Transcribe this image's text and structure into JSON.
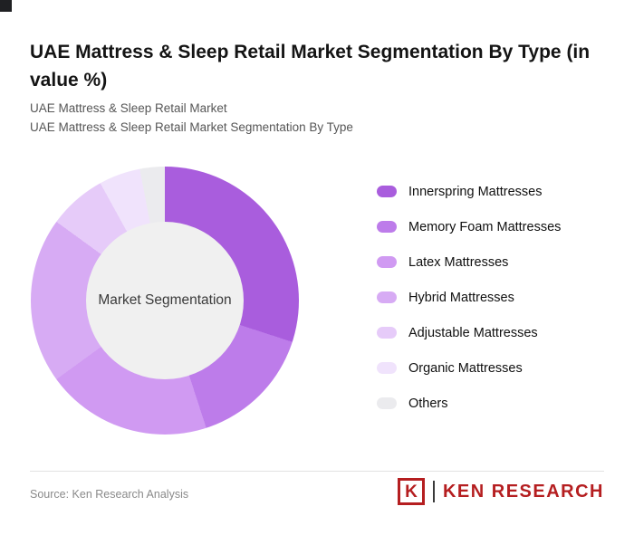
{
  "page": {
    "title": "UAE Mattress & Sleep Retail Market Segmentation By Type (in value %)",
    "subtitle_line1": "UAE Mattress & Sleep Retail Market",
    "subtitle_line2": "UAE Mattress & Sleep Retail Market Segmentation By Type"
  },
  "chart_data": {
    "type": "pie",
    "donut": true,
    "title": "UAE Mattress & Sleep Retail Market Segmentation By Type (in value %)",
    "center_label": "Market Segmentation",
    "center_color": "#f0f0f0",
    "legend_position": "right",
    "start_angle_deg": 0,
    "labels": [
      "Innerspring Mattresses",
      "Memory Foam Mattresses",
      "Latex Mattresses",
      "Hybrid Mattresses",
      "Adjustable Mattresses",
      "Organic Mattresses",
      "Others"
    ],
    "values": [
      30,
      15,
      20,
      20,
      7,
      5,
      3
    ],
    "colors": [
      "#a95ddd",
      "#bd7cea",
      "#d09af2",
      "#d7abf4",
      "#e6cbf9",
      "#f0e3fc",
      "#ebebee"
    ]
  },
  "footer": {
    "source": "Source: Ken Research Analysis",
    "logo_letter": "K",
    "logo_text": "KEN RESEARCH",
    "logo_color": "#b51e20"
  }
}
